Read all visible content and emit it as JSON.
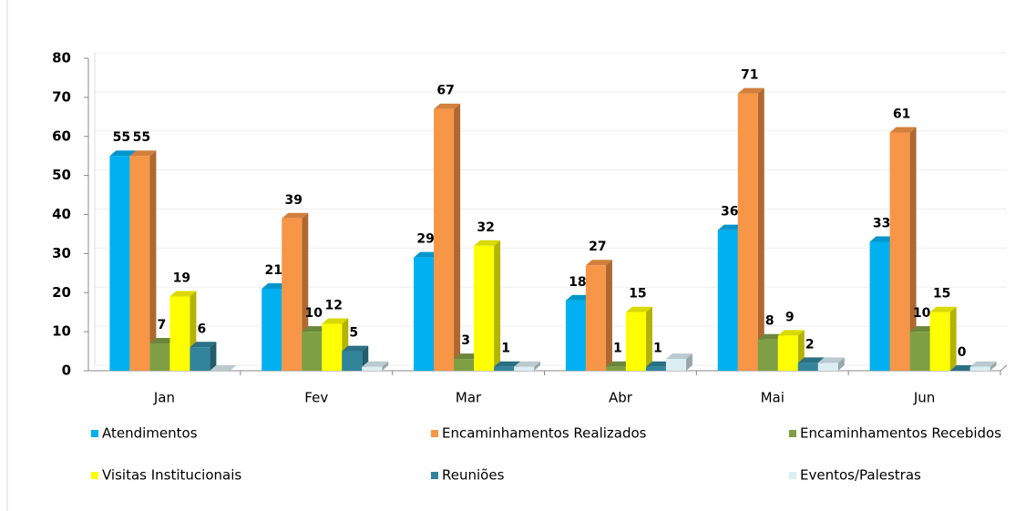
{
  "chart_data": {
    "type": "bar3d",
    "categories": [
      "Jan",
      "Fev",
      "Mar",
      "Abr",
      "Mai",
      "Jun"
    ],
    "series": [
      {
        "name": "Atendimentos",
        "color": "#00b0f0",
        "data_labels": true,
        "values": [
          55,
          21,
          29,
          18,
          36,
          33
        ]
      },
      {
        "name": "Encaminhamentos Realizados",
        "color": "#f79646",
        "data_labels": true,
        "values": [
          55,
          39,
          67,
          27,
          71,
          61
        ]
      },
      {
        "name": "Encaminhamentos Recebidos",
        "color": "#7f9f45",
        "data_labels": true,
        "values": [
          7,
          10,
          3,
          1,
          8,
          10
        ]
      },
      {
        "name": "Visitas Institucionais",
        "color": "#ffff00",
        "data_labels": true,
        "values": [
          19,
          12,
          32,
          15,
          9,
          15
        ]
      },
      {
        "name": "Reuniões",
        "color": "#31849b",
        "data_labels": true,
        "values": [
          6,
          5,
          1,
          1,
          2,
          0
        ]
      },
      {
        "name": "Eventos/Palestras",
        "color": "#dbeef4",
        "data_labels": false,
        "values": [
          0,
          1,
          1,
          3,
          2,
          1
        ]
      }
    ],
    "ylim": [
      0,
      80
    ],
    "yticks": [
      0,
      10,
      20,
      30,
      40,
      50,
      60,
      70,
      80
    ],
    "grid": true,
    "legend": "bottom"
  }
}
